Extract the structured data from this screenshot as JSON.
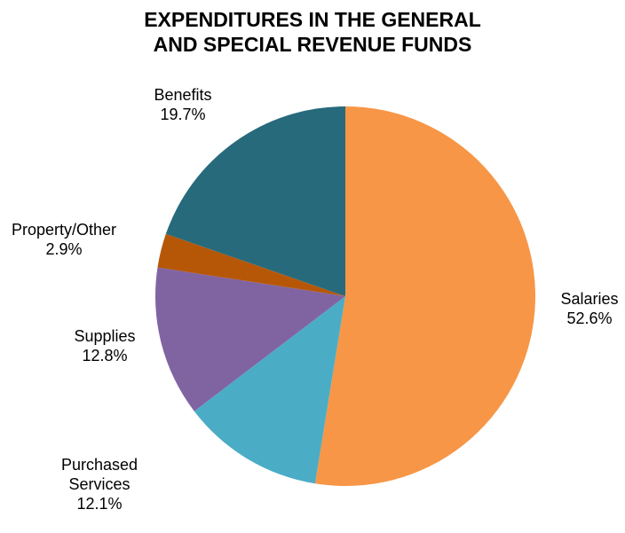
{
  "chart_data": {
    "type": "pie",
    "title": "EXPENDITURES IN THE GENERAL AND SPECIAL REVENUE FUNDS",
    "title_lines": [
      "EXPENDITURES IN THE GENERAL",
      "AND SPECIAL REVENUE FUNDS"
    ],
    "slices": [
      {
        "label": "Salaries",
        "label_lines": [
          "Salaries"
        ],
        "value": 52.6,
        "value_text": "52.6%",
        "color": "#F79646"
      },
      {
        "label": "Purchased Services",
        "label_lines": [
          "Purchased",
          "Services"
        ],
        "value": 12.1,
        "value_text": "12.1%",
        "color": "#4BACC6"
      },
      {
        "label": "Supplies",
        "label_lines": [
          "Supplies"
        ],
        "value": 12.8,
        "value_text": "12.8%",
        "color": "#8064A2"
      },
      {
        "label": "Property/Other",
        "label_lines": [
          "Property/Other"
        ],
        "value": 2.9,
        "value_text": "2.9%",
        "color": "#B65708"
      },
      {
        "label": "Benefits",
        "label_lines": [
          "Benefits"
        ],
        "value": 19.7,
        "value_text": "19.7%",
        "color": "#276A7C"
      }
    ],
    "start_angle_deg": 0,
    "direction": "clockwise",
    "legend": "none"
  }
}
